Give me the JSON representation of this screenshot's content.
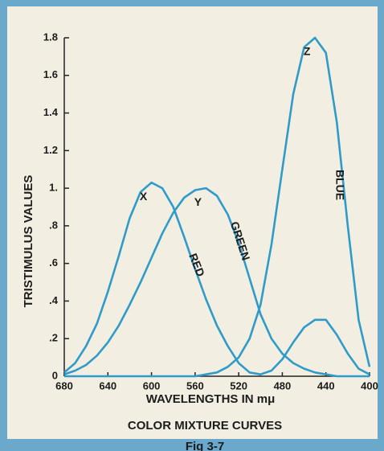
{
  "chart_data": {
    "type": "line",
    "title": "COLOR MIXTURE CURVES",
    "caption": "Fig 3-7",
    "xlabel": "WAVELENGTHS IN mμ",
    "ylabel": "TRISTIMULUS VALUES",
    "annotations": [
      "BLUE",
      "GREEN",
      "RED"
    ],
    "xlim": [
      680,
      400
    ],
    "ylim": [
      0,
      1.8
    ],
    "xticks": [
      680,
      640,
      600,
      560,
      520,
      480,
      440,
      400
    ],
    "yticks": [
      0,
      {
        "value": 0.2,
        "label": ".2"
      },
      {
        "value": 0.4,
        "label": ".4"
      },
      {
        "value": 0.6,
        "label": ".6"
      },
      {
        "value": 0.8,
        "label": ".8"
      },
      {
        "value": 1,
        "label": "1."
      },
      1.2,
      1.4,
      1.6,
      1.8
    ],
    "x": [
      680,
      670,
      660,
      650,
      640,
      630,
      620,
      610,
      600,
      590,
      580,
      570,
      560,
      550,
      540,
      530,
      520,
      510,
      500,
      490,
      480,
      470,
      460,
      450,
      440,
      430,
      420,
      410,
      400
    ],
    "series": [
      {
        "name": "X",
        "color": "#2e9bc9",
        "values": [
          0.02,
          0.07,
          0.16,
          0.28,
          0.45,
          0.64,
          0.84,
          0.98,
          1.03,
          1.0,
          0.9,
          0.74,
          0.57,
          0.41,
          0.27,
          0.16,
          0.07,
          0.02,
          0.01,
          0.03,
          0.09,
          0.18,
          0.26,
          0.3,
          0.3,
          0.22,
          0.12,
          0.04,
          0.01
        ]
      },
      {
        "name": "Y",
        "color": "#2e9bc9",
        "values": [
          0.01,
          0.03,
          0.06,
          0.11,
          0.18,
          0.27,
          0.38,
          0.5,
          0.63,
          0.76,
          0.87,
          0.95,
          0.99,
          1.0,
          0.96,
          0.86,
          0.71,
          0.52,
          0.33,
          0.2,
          0.12,
          0.07,
          0.04,
          0.02,
          0.01,
          0,
          0,
          0,
          0
        ]
      },
      {
        "name": "Z",
        "color": "#2e9bc9",
        "values": [
          0,
          0,
          0,
          0,
          0,
          0,
          0,
          0,
          0,
          0,
          0,
          0,
          0,
          0.01,
          0.02,
          0.05,
          0.1,
          0.2,
          0.38,
          0.7,
          1.1,
          1.5,
          1.75,
          1.8,
          1.72,
          1.35,
          0.8,
          0.3,
          0.05
        ]
      }
    ]
  }
}
